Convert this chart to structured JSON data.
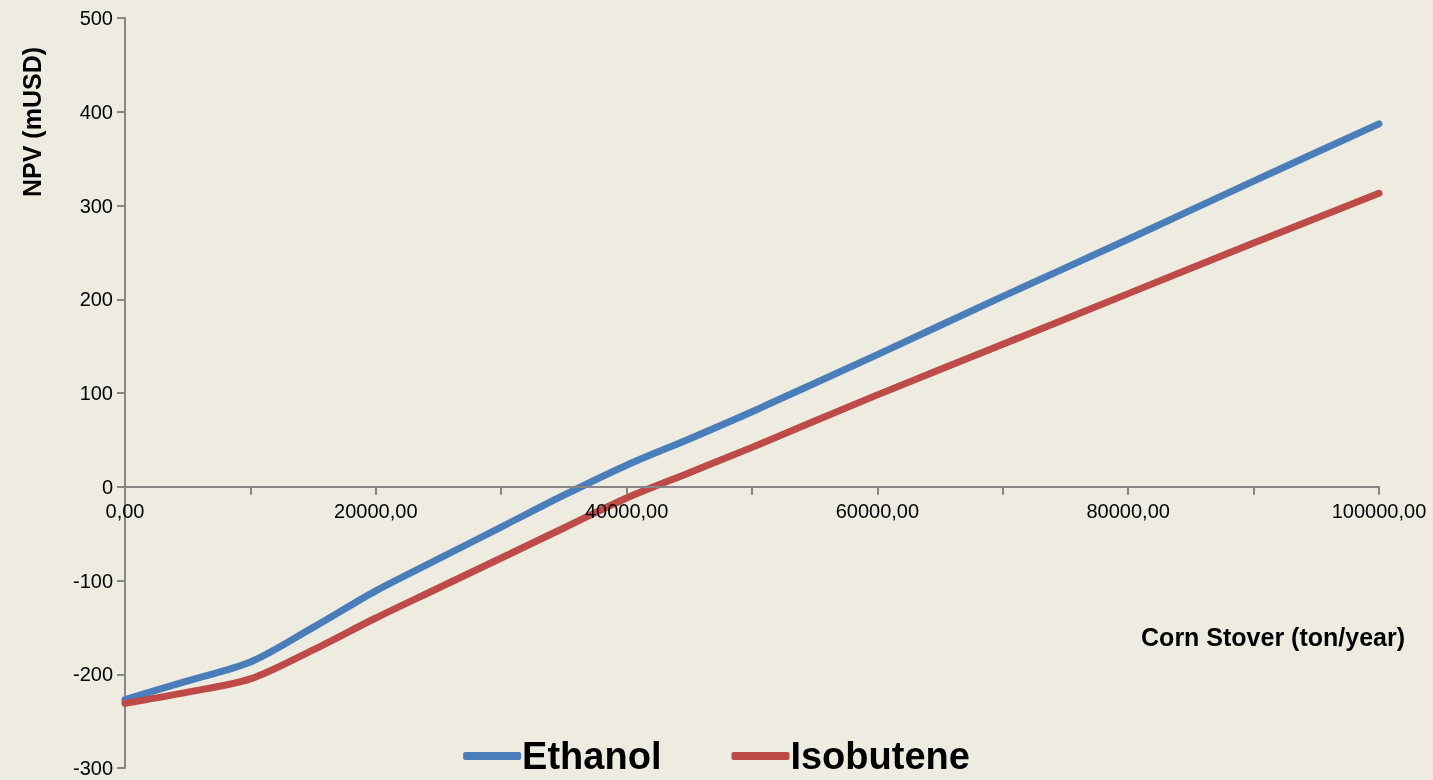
{
  "chart_data": {
    "type": "line",
    "xlabel": "Corn Stover (ton/year)",
    "ylabel": "NPV (mUSD)",
    "x": [
      0,
      5000,
      10000,
      15000,
      20000,
      25000,
      30000,
      35000,
      40000,
      45000,
      50000,
      60000,
      70000,
      80000,
      90000,
      100000
    ],
    "series": [
      {
        "name": "Ethanol",
        "color": "#4a7ebb",
        "values": [
          -227,
          -207,
          -187,
          -150,
          -111,
          -77,
          -43,
          -9,
          23,
          51,
          80,
          141,
          203,
          264,
          326,
          387
        ]
      },
      {
        "name": "Isobutene",
        "color": "#be4b48",
        "values": [
          -231,
          -219,
          -205,
          -174,
          -140,
          -108,
          -76,
          -44,
          -12,
          15,
          42,
          98,
          152,
          206,
          260,
          313
        ]
      }
    ],
    "xlim": [
      0,
      100000
    ],
    "xticks": [
      {
        "value": 0,
        "label": "0,00"
      },
      {
        "value": 10000,
        "label": null
      },
      {
        "value": 20000,
        "label": "20000,00"
      },
      {
        "value": 30000,
        "label": null
      },
      {
        "value": 40000,
        "label": "40000,00"
      },
      {
        "value": 50000,
        "label": null
      },
      {
        "value": 60000,
        "label": "60000,00"
      },
      {
        "value": 70000,
        "label": null
      },
      {
        "value": 80000,
        "label": "80000,00"
      },
      {
        "value": 90000,
        "label": null
      },
      {
        "value": 100000,
        "label": "100000,00"
      }
    ],
    "ylim": [
      -300,
      500
    ],
    "yticks": [
      -300,
      -200,
      -100,
      0,
      100,
      200,
      300,
      400,
      500
    ],
    "legend": "bottom",
    "marker": "none",
    "line_style": "solid"
  }
}
